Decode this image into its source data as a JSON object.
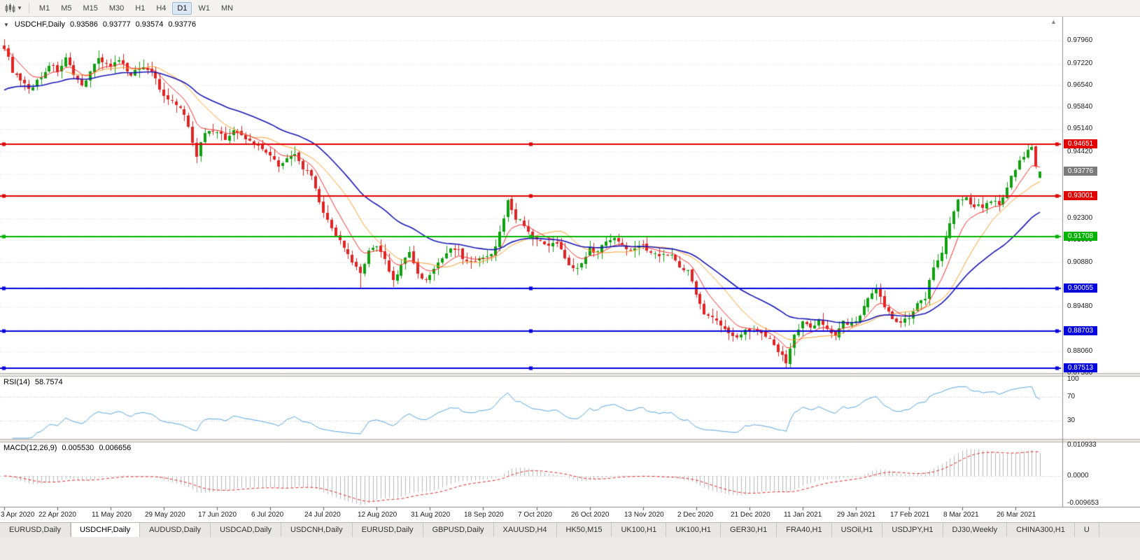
{
  "toolbar": {
    "timeframes": [
      "M1",
      "M5",
      "M15",
      "M30",
      "H1",
      "H4",
      "D1",
      "W1",
      "MN"
    ],
    "active": "D1"
  },
  "chart_header": {
    "symbol": "USDCHF,Daily",
    "open": "0.93586",
    "high": "0.93777",
    "low": "0.93574",
    "close": "0.93776"
  },
  "misc": {
    "collapse_icon": "▼",
    "shift_icon": "▲",
    "dropdown_icon": "▼"
  },
  "price_axis": {
    "grid_prices": [
      0.9796,
      0.9722,
      0.9654,
      0.9584,
      0.9514,
      0.9442,
      0.937,
      0.9298,
      0.923,
      0.916,
      0.9088,
      0.9016,
      0.8948,
      0.8876,
      0.8806,
      0.8736
    ],
    "plain_labels": [
      "0.97960",
      "0.97220",
      "0.96540",
      "0.95840",
      "0.95140",
      "0.94420",
      "0.92300",
      "0.91600",
      "0.90880",
      "0.89480",
      "0.88060",
      "0.87360"
    ],
    "boxed_labels": [
      {
        "text": "0.94651",
        "color": "#e00000"
      },
      {
        "text": "0.93776",
        "color": "#7a7a7a"
      },
      {
        "text": "0.93001",
        "color": "#e00000"
      },
      {
        "text": "0.91708",
        "color": "#00b300"
      },
      {
        "text": "0.90055",
        "color": "#0000dd"
      },
      {
        "text": "0.88703",
        "color": "#0000dd"
      },
      {
        "text": "0.87513",
        "color": "#0000dd"
      }
    ]
  },
  "hlines": [
    {
      "price": 0.94651,
      "color": "#e00000"
    },
    {
      "price": 0.93001,
      "color": "#e00000"
    },
    {
      "price": 0.91708,
      "color": "#00b300"
    },
    {
      "price": 0.90055,
      "color": "#0000dd"
    },
    {
      "price": 0.88703,
      "color": "#0000dd"
    },
    {
      "price": 0.87513,
      "color": "#0000dd"
    }
  ],
  "chart_data": {
    "type": "candlestick",
    "symbol": "USDCHF",
    "timeframe": "Daily",
    "bars": 254,
    "visible_range": {
      "first_date": "3 Apr 2020",
      "last_date": "26 Mar 2021",
      "price_low": 0.8736,
      "price_high": 0.9796
    },
    "candle_up_color": "#10a010",
    "candle_down_color": "#e02424",
    "close_anchors": [
      [
        0,
        0.9775
      ],
      [
        2,
        0.97
      ],
      [
        4,
        0.9665
      ],
      [
        6,
        0.964
      ],
      [
        9,
        0.968
      ],
      [
        11,
        0.972
      ],
      [
        13,
        0.97
      ],
      [
        15,
        0.974
      ],
      [
        17,
        0.968
      ],
      [
        19,
        0.965
      ],
      [
        21,
        0.97
      ],
      [
        23,
        0.974
      ],
      [
        26,
        0.9715
      ],
      [
        28,
        0.973
      ],
      [
        31,
        0.969
      ],
      [
        34,
        0.9715
      ],
      [
        36,
        0.97
      ],
      [
        39,
        0.9615
      ],
      [
        41,
        0.96
      ],
      [
        43,
        0.958
      ],
      [
        45,
        0.9525
      ],
      [
        47,
        0.943
      ],
      [
        49,
        0.9505
      ],
      [
        52,
        0.951
      ],
      [
        54,
        0.948
      ],
      [
        56,
        0.951
      ],
      [
        58,
        0.949
      ],
      [
        60,
        0.9475
      ],
      [
        63,
        0.9455
      ],
      [
        65,
        0.943
      ],
      [
        67,
        0.94
      ],
      [
        69,
        0.942
      ],
      [
        71,
        0.943
      ],
      [
        73,
        0.939
      ],
      [
        75,
        0.936
      ],
      [
        77,
        0.928
      ],
      [
        79,
        0.922
      ],
      [
        81,
        0.918
      ],
      [
        83,
        0.913
      ],
      [
        85,
        0.909
      ],
      [
        87,
        0.905
      ],
      [
        89,
        0.913
      ],
      [
        91,
        0.914
      ],
      [
        93,
        0.91
      ],
      [
        95,
        0.903
      ],
      [
        97,
        0.908
      ],
      [
        99,
        0.912
      ],
      [
        101,
        0.905
      ],
      [
        103,
        0.903
      ],
      [
        105,
        0.907
      ],
      [
        107,
        0.91
      ],
      [
        109,
        0.9135
      ],
      [
        111,
        0.9125
      ],
      [
        113,
        0.909
      ],
      [
        115,
        0.9095
      ],
      [
        117,
        0.91
      ],
      [
        119,
        0.911
      ],
      [
        121,
        0.918
      ],
      [
        123,
        0.9285
      ],
      [
        125,
        0.923
      ],
      [
        127,
        0.921
      ],
      [
        129,
        0.917
      ],
      [
        131,
        0.915
      ],
      [
        133,
        0.914
      ],
      [
        135,
        0.915
      ],
      [
        137,
        0.91
      ],
      [
        139,
        0.907
      ],
      [
        141,
        0.908
      ],
      [
        143,
        0.913
      ],
      [
        145,
        0.912
      ],
      [
        147,
        0.916
      ],
      [
        149,
        0.917
      ],
      [
        151,
        0.914
      ],
      [
        153,
        0.913
      ],
      [
        155,
        0.915
      ],
      [
        157,
        0.913
      ],
      [
        159,
        0.9115
      ],
      [
        161,
        0.9115
      ],
      [
        163,
        0.911
      ],
      [
        165,
        0.908
      ],
      [
        167,
        0.906
      ],
      [
        169,
        0.899
      ],
      [
        171,
        0.893
      ],
      [
        173,
        0.891
      ],
      [
        175,
        0.889
      ],
      [
        177,
        0.886
      ],
      [
        179,
        0.885
      ],
      [
        181,
        0.888
      ],
      [
        183,
        0.887
      ],
      [
        185,
        0.887
      ],
      [
        187,
        0.884
      ],
      [
        189,
        0.881
      ],
      [
        191,
        0.877
      ],
      [
        193,
        0.886
      ],
      [
        195,
        0.89
      ],
      [
        197,
        0.888
      ],
      [
        199,
        0.89
      ],
      [
        201,
        0.888
      ],
      [
        203,
        0.886
      ],
      [
        205,
        0.89
      ],
      [
        207,
        0.889
      ],
      [
        209,
        0.892
      ],
      [
        211,
        0.897
      ],
      [
        213,
        0.9
      ],
      [
        215,
        0.895
      ],
      [
        217,
        0.891
      ],
      [
        219,
        0.89
      ],
      [
        221,
        0.891
      ],
      [
        223,
        0.896
      ],
      [
        225,
        0.898
      ],
      [
        227,
        0.908
      ],
      [
        229,
        0.912
      ],
      [
        231,
        0.922
      ],
      [
        233,
        0.929
      ],
      [
        235,
        0.929
      ],
      [
        237,
        0.927
      ],
      [
        239,
        0.927
      ],
      [
        241,
        0.929
      ],
      [
        243,
        0.927
      ],
      [
        245,
        0.933
      ],
      [
        247,
        0.939
      ],
      [
        249,
        0.943
      ],
      [
        251,
        0.9455
      ],
      [
        252,
        0.9395
      ],
      [
        253,
        0.93776
      ]
    ],
    "wick_overrides": {
      "0": {
        "high": 0.9801
      },
      "47": {
        "low": 0.9405
      },
      "87": {
        "low": 0.9006
      },
      "95": {
        "low": 0.901
      },
      "123": {
        "high": 0.9292
      },
      "182": {
        "low": 0.8842
      },
      "191": {
        "low": 0.87513
      },
      "251": {
        "high": 0.94651
      }
    },
    "last_bar": {
      "open": 0.93586,
      "high": 0.93777,
      "low": 0.93574,
      "close": 0.93776
    },
    "moving_averages": [
      {
        "name": "ma-medium",
        "color": "#ff9e2a",
        "period": 16,
        "method": "sma",
        "width": 1
      },
      {
        "name": "ma-fast",
        "color": "#ff2a2a",
        "period": 8,
        "method": "ema",
        "width": 1
      },
      {
        "name": "ma-slow",
        "color": "#1717b8",
        "period": 34,
        "method": "ema",
        "seed": 0.963,
        "width": 1.6
      }
    ],
    "date_labels": [
      [
        "3 Apr 2020",
        0
      ],
      [
        "22 Apr 2020",
        13
      ],
      [
        "11 May 2020",
        26
      ],
      [
        "29 May 2020",
        39
      ],
      [
        "17 Jun 2020",
        52
      ],
      [
        "6 Jul 2020",
        65
      ],
      [
        "24 Jul 2020",
        78
      ],
      [
        "12 Aug 2020",
        91
      ],
      [
        "31 Aug 2020",
        104
      ],
      [
        "18 Sep 2020",
        117
      ],
      [
        "7 Oct 2020",
        130
      ],
      [
        "26 Oct 2020",
        143
      ],
      [
        "13 Nov 2020",
        156
      ],
      [
        "2 Dec 2020",
        169
      ],
      [
        "21 Dec 2020",
        182
      ],
      [
        "11 Jan 2021",
        195
      ],
      [
        "29 Jan 2021",
        208
      ],
      [
        "17 Feb 2021",
        221
      ],
      [
        "8 Mar 2021",
        234
      ],
      [
        "26 Mar 2021",
        247
      ]
    ]
  },
  "rsi": {
    "label": "RSI(14)",
    "value": "58.7574",
    "period": 14,
    "levels": [
      "100",
      "70",
      "30"
    ],
    "level_values": [
      100,
      70,
      30
    ],
    "line_color": "#58a6e0"
  },
  "macd": {
    "label": "MACD(12,26,9)",
    "value_main": "0.005530",
    "value_signal": "0.006656",
    "fast": 12,
    "slow": 26,
    "signal": 9,
    "axis_labels": [
      "0.010933",
      "0.0000",
      "-0.009653"
    ],
    "axis_values": [
      0.010933,
      0,
      -0.009653
    ],
    "histogram_color": "#b8b8b8",
    "signal_color": "#e02424"
  },
  "tabs": {
    "items": [
      "EURUSD,Daily",
      "USDCHF,Daily",
      "AUDUSD,Daily",
      "USDCAD,Daily",
      "USDCNH,Daily",
      "EURUSD,Daily",
      "GBPUSD,Daily",
      "XAUUSD,H4",
      "HK50,M15",
      "UK100,H1",
      "UK100,H1",
      "GER30,H1",
      "FRA40,H1",
      "USOil,H1",
      "USDJPY,H1",
      "DJ30,Weekly",
      "CHINA300,H1",
      "U"
    ],
    "active_index": 1
  }
}
